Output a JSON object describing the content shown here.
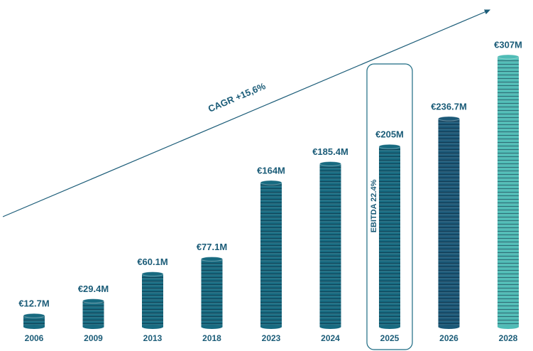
{
  "chart_data": {
    "type": "bar",
    "categories": [
      "2006",
      "2009",
      "2013",
      "2018",
      "2023",
      "2024",
      "2025",
      "2026",
      "2028"
    ],
    "values": [
      12.7,
      29.4,
      60.1,
      77.1,
      164,
      185.4,
      205,
      236.7,
      307
    ],
    "value_labels": [
      "€12.7M",
      "€29.4M",
      "€60.1M",
      "€77.1M",
      "€164M",
      "€185.4M",
      "€205M",
      "€236.7M",
      "€307M"
    ],
    "colors": [
      "#176a80",
      "#176a80",
      "#176a80",
      "#176a80",
      "#176a80",
      "#176a80",
      "#176a80",
      "#1b5877",
      "#4fbcb6"
    ],
    "annotations": [
      {
        "text": "CAGR +15,6%"
      },
      {
        "text": "EBITDA 22.4%",
        "category": "2025"
      }
    ]
  }
}
